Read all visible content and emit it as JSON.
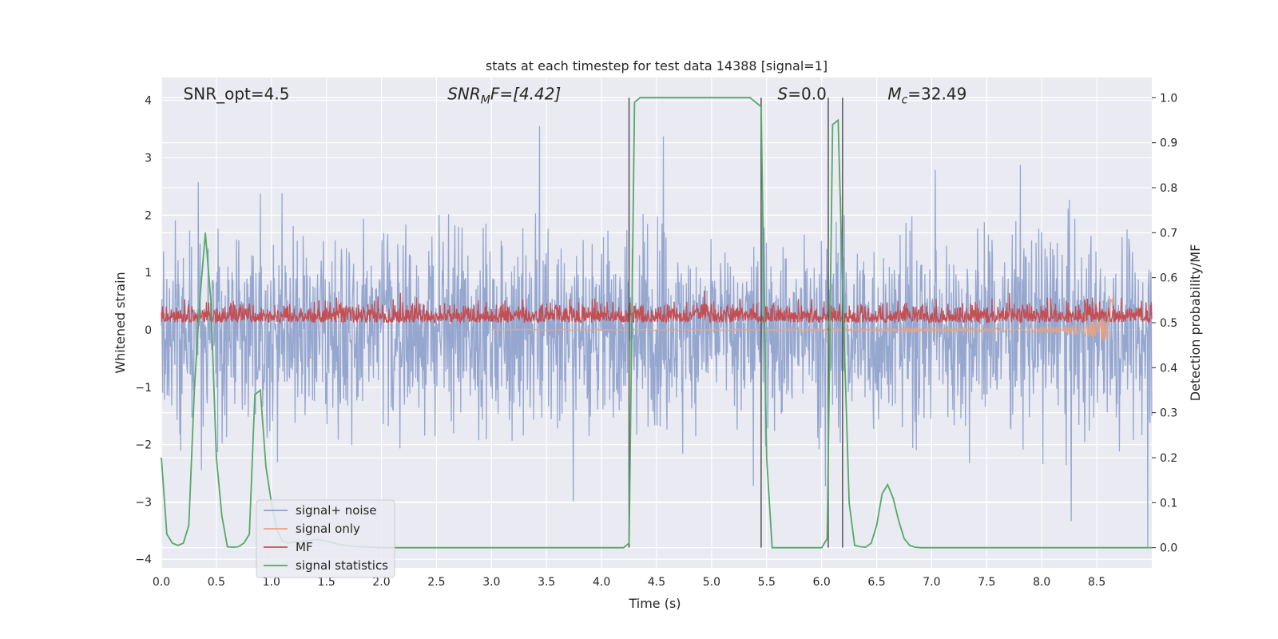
{
  "chart_data": {
    "type": "line",
    "title": "stats at each timestep for test data 14388 [signal=1]",
    "xlabel": "Time (s)",
    "ylabel": "Whitened strain",
    "ylabel_right": "Detection probability/MF",
    "xlim": [
      0,
      9.0
    ],
    "ylim": [
      -4.15,
      4.4
    ],
    "ylim_right": [
      -0.045,
      1.045
    ],
    "x_ticks": [
      "0.0",
      "0.5",
      "1.0",
      "1.5",
      "2.0",
      "2.5",
      "3.0",
      "3.5",
      "4.0",
      "4.5",
      "5.0",
      "5.5",
      "6.0",
      "6.5",
      "7.0",
      "7.5",
      "8.0",
      "8.5"
    ],
    "y_ticks": [
      "4",
      "3",
      "2",
      "1",
      "0",
      "−1",
      "−2",
      "−3",
      "−4"
    ],
    "y_ticks_right": [
      "1.0",
      "0.9",
      "0.8",
      "0.7",
      "0.6",
      "0.5",
      "0.4",
      "0.3",
      "0.2",
      "0.1",
      "0.0"
    ],
    "grid": true,
    "legend_position": "lower-left",
    "annotations": [
      {
        "main": "SNR_opt=4.5",
        "x": 0.2,
        "y": 4.1
      },
      {
        "main": "SNR",
        "sub": "M",
        "rest": "F=[4.42]",
        "x": 2.6,
        "y": 4.1
      },
      {
        "main": "S",
        "rest": "=0.0",
        "x": 5.6,
        "y": 4.1
      },
      {
        "main": "M",
        "sub": "c",
        "rest": "=32.49",
        "x": 6.6,
        "y": 4.1
      }
    ],
    "vlines_right_axis": [
      4.25,
      5.45,
      6.06,
      6.19
    ],
    "series": [
      {
        "name": "signal+ noise",
        "color": "#8da0cb",
        "axis": "left",
        "noise_amplitude": 1.7
      },
      {
        "name": "signal only",
        "color": "#e8a382",
        "axis": "left",
        "chirp_end": 8.65,
        "peak": 1.1
      },
      {
        "name": "MF",
        "color": "#c44e52",
        "axis": "right",
        "baseline": 0.5,
        "typical_max": 0.58
      },
      {
        "name": "signal statistics",
        "color": "#55a868",
        "axis": "right",
        "x": [
          0.0,
          0.05,
          0.1,
          0.15,
          0.2,
          0.25,
          0.3,
          0.35,
          0.4,
          0.45,
          0.5,
          0.55,
          0.6,
          0.65,
          0.7,
          0.75,
          0.8,
          0.85,
          0.9,
          0.95,
          1.0,
          1.05,
          1.1,
          1.15,
          1.2,
          1.3,
          1.4,
          1.5,
          1.6,
          1.7,
          1.8,
          2.0,
          3.0,
          4.0,
          4.2,
          4.25,
          4.3,
          4.35,
          4.4,
          4.5,
          5.0,
          5.35,
          5.4,
          5.45,
          5.5,
          5.55,
          5.6,
          5.7,
          6.0,
          6.05,
          6.1,
          6.15,
          6.2,
          6.25,
          6.3,
          6.35,
          6.4,
          6.45,
          6.5,
          6.55,
          6.6,
          6.65,
          6.7,
          6.75,
          6.8,
          6.85,
          6.9,
          6.95,
          7.0,
          7.5,
          8.0,
          8.5,
          9.0
        ],
        "y": [
          0.2,
          0.03,
          0.01,
          0.005,
          0.01,
          0.05,
          0.35,
          0.55,
          0.7,
          0.55,
          0.2,
          0.07,
          0.002,
          0.001,
          0.002,
          0.01,
          0.03,
          0.34,
          0.35,
          0.18,
          0.1,
          0.04,
          0.015,
          0.01,
          0.012,
          0.015,
          0.018,
          0.015,
          0.008,
          0.004,
          0.002,
          0.0,
          0.0,
          0.0,
          0.0,
          0.01,
          0.99,
          1.0,
          1.0,
          1.0,
          1.0,
          1.0,
          0.99,
          0.98,
          0.2,
          0.0,
          0.0,
          0.0,
          0.0,
          0.02,
          0.94,
          0.95,
          0.5,
          0.1,
          0.005,
          0.002,
          0.001,
          0.01,
          0.05,
          0.12,
          0.14,
          0.11,
          0.06,
          0.02,
          0.005,
          0.001,
          0.0,
          0.0,
          0.0,
          0.0,
          0.0,
          0.0,
          0.0
        ]
      }
    ]
  }
}
